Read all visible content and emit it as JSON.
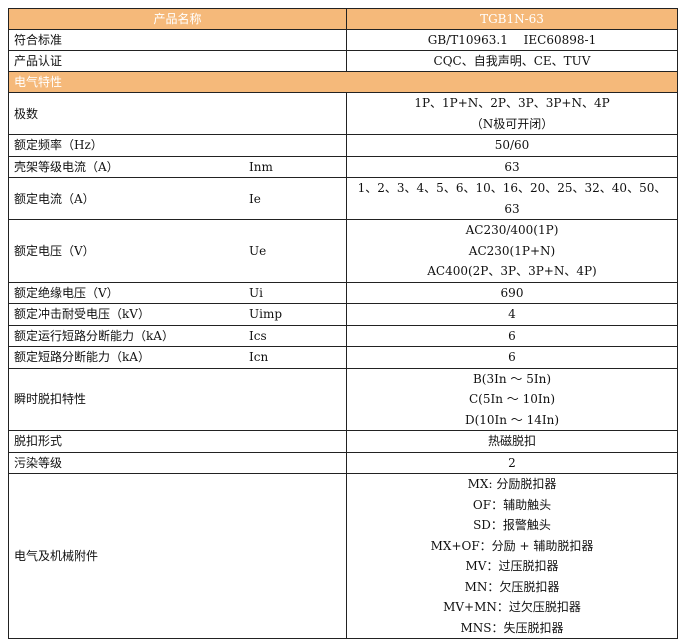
{
  "header": {
    "name_label": "产品名称",
    "model": "TGB1N-63"
  },
  "rows_top": [
    {
      "label": "符合标准",
      "value": "GB/T10963.1　 IEC60898-1"
    },
    {
      "label": "产品认证",
      "value": "CQC、自我声明、CE、TUV"
    }
  ],
  "section": "电气特性",
  "rows": [
    {
      "label": "极数",
      "sub": "",
      "lines": [
        "1P、1P+N、2P、3P、3P+N、4P",
        "（N极可开闭）"
      ]
    },
    {
      "label": "额定频率（Hz）",
      "sub": "",
      "lines": [
        "50/60"
      ]
    },
    {
      "label": "壳架等级电流（A）",
      "sub": "Inm",
      "lines": [
        "63"
      ]
    },
    {
      "label": "额定电流（A）",
      "sub": "Ie",
      "lines": [
        "1、2、3、4、5、6、10、16、20、25、32、40、50、63"
      ]
    },
    {
      "label": "额定电压（V）",
      "sub": "Ue",
      "lines": [
        "AC230/400(1P)",
        "AC230(1P+N)",
        "AC400(2P、3P、3P+N、4P)"
      ]
    },
    {
      "label": "额定绝缘电压（V）",
      "sub": "Ui",
      "lines": [
        "690"
      ]
    },
    {
      "label": "额定冲击耐受电压（kV）",
      "sub": "Uimp",
      "lines": [
        "4"
      ]
    },
    {
      "label": "额定运行短路分断能力（kA）",
      "sub": "Ics",
      "lines": [
        "6"
      ]
    },
    {
      "label": "额定短路分断能力（kA）",
      "sub": "Icn",
      "lines": [
        "6"
      ]
    },
    {
      "label": "瞬时脱扣特性",
      "sub": "",
      "lines": [
        "B(3In ～ 5In)",
        "C(5In ～ 10In)",
        "D(10In ～ 14In)"
      ]
    },
    {
      "label": "脱扣形式",
      "sub": "",
      "lines": [
        "热磁脱扣"
      ]
    },
    {
      "label": "污染等级",
      "sub": "",
      "lines": [
        "2"
      ]
    },
    {
      "label": "电气及机械附件",
      "sub": "",
      "lines": [
        "MX: 分励脱扣器",
        "OF：辅助触头",
        "SD：报警触头",
        "MX+OF：分励 + 辅助脱扣器",
        "MV：过压脱扣器",
        "MN：欠压脱扣器",
        "MV+MN：过欠压脱扣器",
        "MNS：失压脱扣器"
      ]
    }
  ]
}
